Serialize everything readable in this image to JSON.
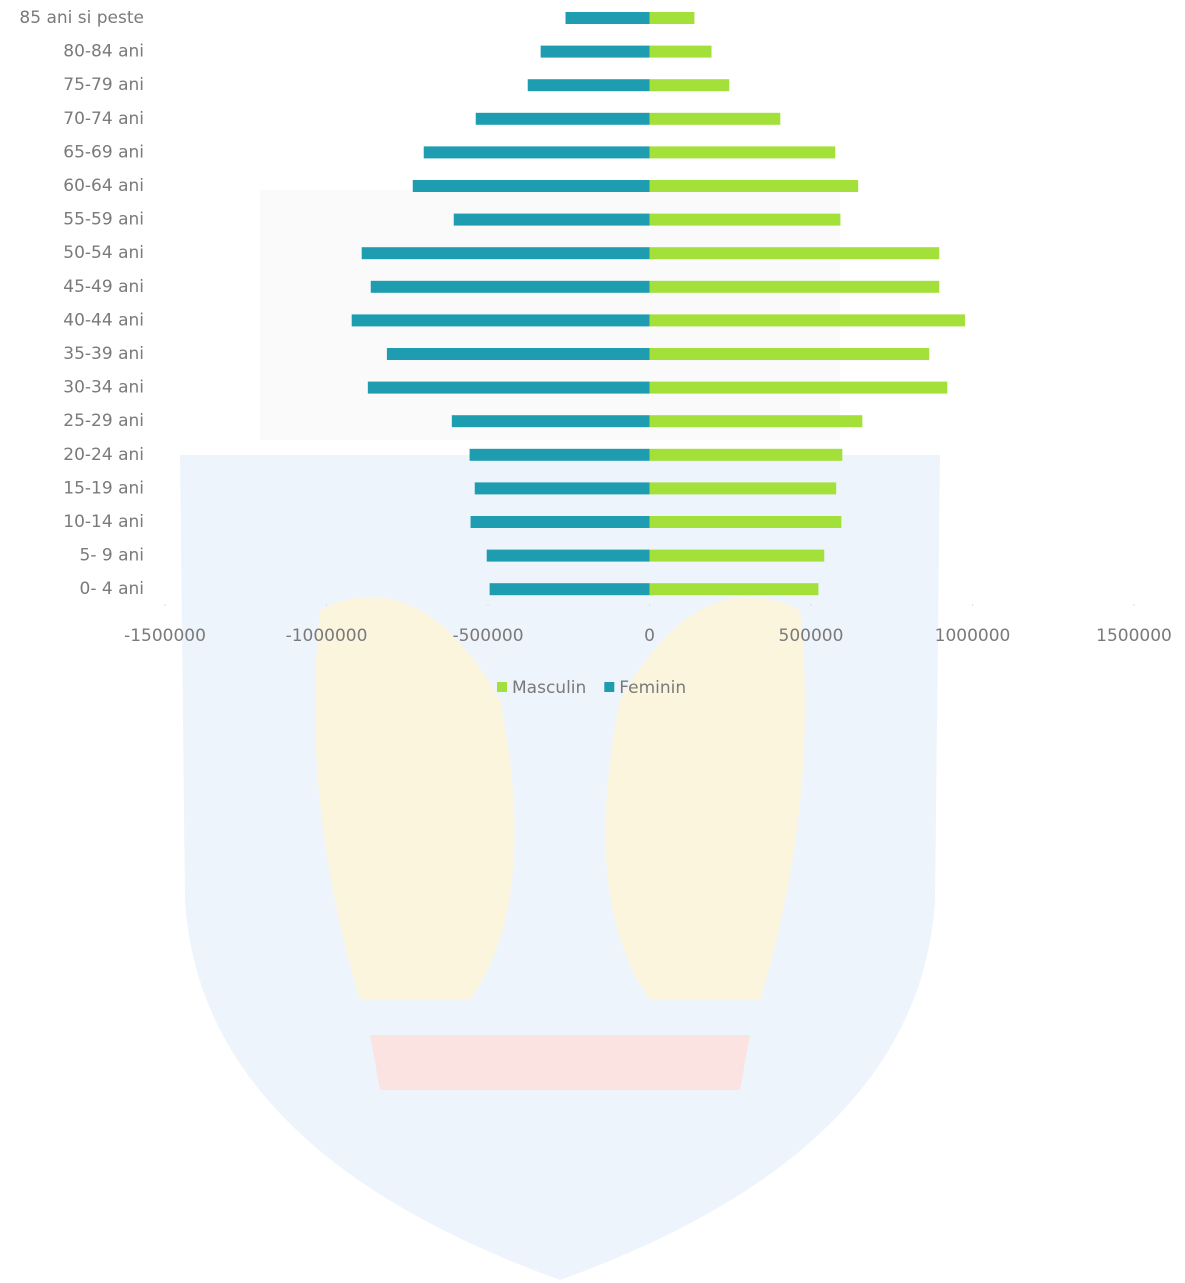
{
  "chart_data": {
    "type": "bar",
    "orientation": "horizontal",
    "categories": [
      "85 ani si peste",
      "80-84 ani",
      "75-79 ani",
      "70-74 ani",
      "65-69 ani",
      "60-64 ani",
      "55-59 ani",
      "50-54 ani",
      "45-49 ani",
      "40-44 ani",
      "35-39 ani",
      "30-34 ani",
      "25-29 ani",
      "20-24 ani",
      "15-19 ani",
      "10-14 ani",
      "5- 9 ani",
      "0- 4 ani"
    ],
    "series": [
      {
        "name": "Masculin",
        "color": "#a3e03a",
        "values": [
          139000,
          192000,
          247000,
          405000,
          575000,
          646000,
          591000,
          897000,
          897000,
          977000,
          866000,
          922000,
          659000,
          597000,
          578000,
          594000,
          541000,
          523000
        ]
      },
      {
        "name": "Feminin",
        "color": "#1f9db0",
        "values": [
          -260000,
          -337000,
          -377000,
          -538000,
          -699000,
          -733000,
          -606000,
          -891000,
          -863000,
          -922000,
          -813000,
          -872000,
          -612000,
          -557000,
          -541000,
          -554000,
          -504000,
          -495000
        ]
      }
    ],
    "xlim": [
      -1500000,
      1500000
    ],
    "xticks": [
      -1500000,
      -1000000,
      -500000,
      0,
      500000,
      1000000,
      1500000
    ],
    "legend": "bottom"
  }
}
